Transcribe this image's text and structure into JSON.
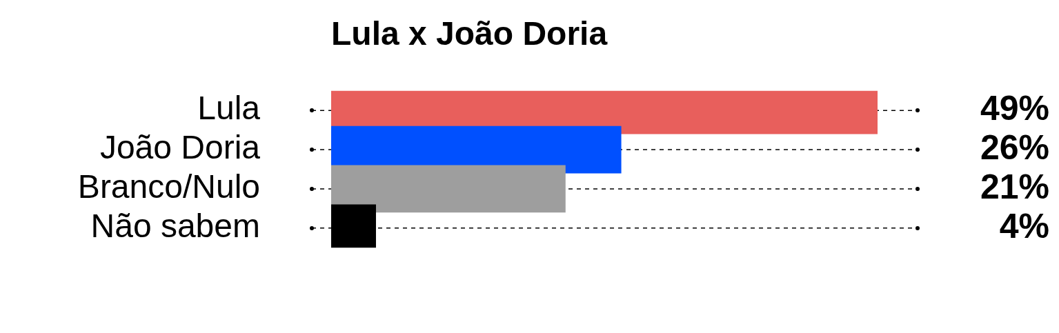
{
  "chart_data": {
    "type": "bar",
    "orientation": "horizontal",
    "title": "Lula x João Doria",
    "categories": [
      "Lula",
      "João Doria",
      "Branco/Nulo",
      "Não sabem"
    ],
    "values": [
      49,
      26,
      21,
      4
    ],
    "colors": [
      "#e85f5c",
      "#0050ff",
      "#9e9e9e",
      "#000000"
    ],
    "value_labels": [
      "49%",
      "26%",
      "21%",
      "4%"
    ],
    "grid": "y",
    "tick_labels": "y",
    "legend": false
  }
}
